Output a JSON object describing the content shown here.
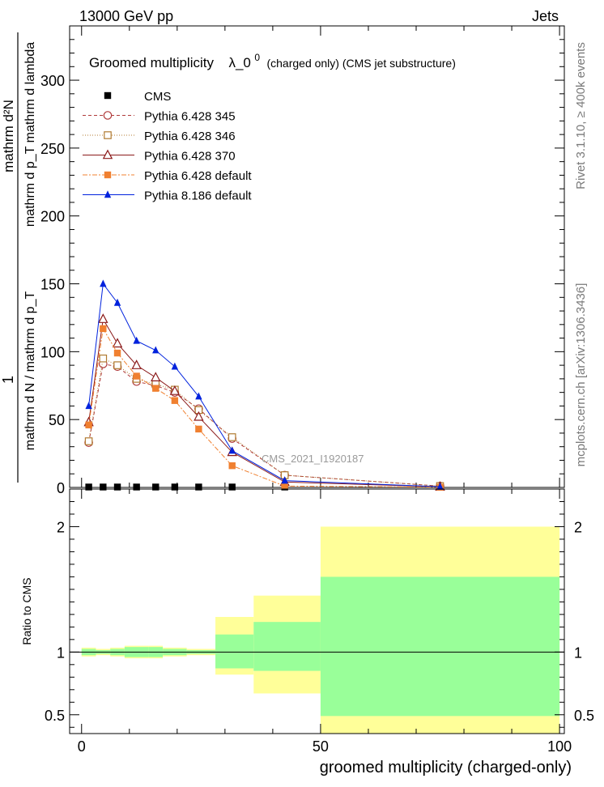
{
  "header": {
    "left": "13000 GeV pp",
    "right": "Jets"
  },
  "side_text": {
    "rivet": "Rivet 3.1.10, ≥ 400k events",
    "mcplots": "mcplots.cern.ch [arXiv:1306.3436]"
  },
  "chart_data": [
    {
      "type": "scatter",
      "title_main": "Groomed multiplicity",
      "title_symbol": "λ_0",
      "title_superscript": "0",
      "title_sub": "(charged only) (CMS jet substructure)",
      "analysis_label": "CMS_2021_I1920187",
      "ylabel_numerator": "mathrm d²N",
      "ylabel_numerator_line2": "mathrm d p_T mathrm d lambda",
      "ylabel_denominator": "mathrm d N / mathrm d p_T",
      "ylabel_prefactor": "1",
      "xlim": [
        -2.5,
        101
      ],
      "ylim": [
        0,
        340
      ],
      "yticks": [
        0,
        50,
        100,
        150,
        200,
        250,
        300
      ],
      "x": [
        1.5,
        4.5,
        7.5,
        11.5,
        15.5,
        19.5,
        24.5,
        31.5,
        42.5,
        75.0
      ],
      "series": [
        {
          "name": "CMS",
          "color": "#000000",
          "marker": "square-filled",
          "values": [
            0.3,
            0.3,
            0.3,
            0.3,
            0.3,
            0.3,
            0.3,
            0.3,
            0.3,
            0.3
          ]
        },
        {
          "name": "Pythia 6.428 345",
          "color": "#b03a3a",
          "marker": "circle-open",
          "dash": "4,3",
          "values": [
            33,
            91,
            89,
            78,
            75,
            70,
            58,
            36,
            9,
            1
          ]
        },
        {
          "name": "Pythia 6.428 346",
          "color": "#b07a30",
          "marker": "square-open",
          "dash": "1,2",
          "values": [
            34,
            95,
            90,
            80,
            76,
            72,
            57,
            37,
            9,
            1
          ]
        },
        {
          "name": "Pythia 6.428 370",
          "color": "#8b1a1a",
          "marker": "triangle-open",
          "dash": "",
          "values": [
            48,
            124,
            106,
            90,
            81,
            71,
            52,
            26,
            4,
            0.5
          ]
        },
        {
          "name": "Pythia 6.428 default",
          "color": "#f08030",
          "marker": "square-filled",
          "dash": "6,2,2,2",
          "values": [
            46,
            117,
            99,
            82,
            73,
            64,
            43,
            16,
            1,
            0.2
          ]
        },
        {
          "name": "Pythia 8.186 default",
          "color": "#0022dd",
          "marker": "triangle-filled",
          "dash": "",
          "values": [
            60,
            150,
            136,
            108,
            101,
            89,
            67,
            27,
            5,
            0.5
          ]
        }
      ]
    },
    {
      "type": "area",
      "ylabel": "Ratio to CMS",
      "xlabel": "groomed multiplicity (charged-only)",
      "ylim": [
        0.35,
        2.3
      ],
      "yticks": [
        0.5,
        1,
        2
      ],
      "xticks": [
        0,
        50,
        100
      ],
      "reference": 1,
      "bins": [
        {
          "lo": 0,
          "hi": 3,
          "inner": [
            0.975,
            1.025
          ],
          "outer": [
            0.965,
            1.035
          ]
        },
        {
          "lo": 3,
          "hi": 6,
          "inner": [
            0.985,
            1.015
          ],
          "outer": [
            0.975,
            1.025
          ]
        },
        {
          "lo": 6,
          "hi": 9,
          "inner": [
            0.975,
            1.025
          ],
          "outer": [
            0.965,
            1.035
          ]
        },
        {
          "lo": 9,
          "hi": 14,
          "inner": [
            0.96,
            1.04
          ],
          "outer": [
            0.95,
            1.05
          ]
        },
        {
          "lo": 14,
          "hi": 17,
          "inner": [
            0.96,
            1.04
          ],
          "outer": [
            0.95,
            1.05
          ]
        },
        {
          "lo": 17,
          "hi": 22,
          "inner": [
            0.975,
            1.025
          ],
          "outer": [
            0.965,
            1.035
          ]
        },
        {
          "lo": 22,
          "hi": 28,
          "inner": [
            0.985,
            1.015
          ],
          "outer": [
            0.975,
            1.025
          ]
        },
        {
          "lo": 28,
          "hi": 36,
          "inner": [
            0.87,
            1.14
          ],
          "outer": [
            0.82,
            1.28
          ]
        },
        {
          "lo": 36,
          "hi": 50,
          "inner": [
            0.85,
            1.24
          ],
          "outer": [
            0.67,
            1.45
          ]
        },
        {
          "lo": 50,
          "hi": 100,
          "inner": [
            0.49,
            1.6
          ],
          "outer": [
            0.35,
            2.0
          ]
        }
      ],
      "colors": {
        "inner": "#99ff99",
        "outer": "#ffff99"
      }
    }
  ]
}
